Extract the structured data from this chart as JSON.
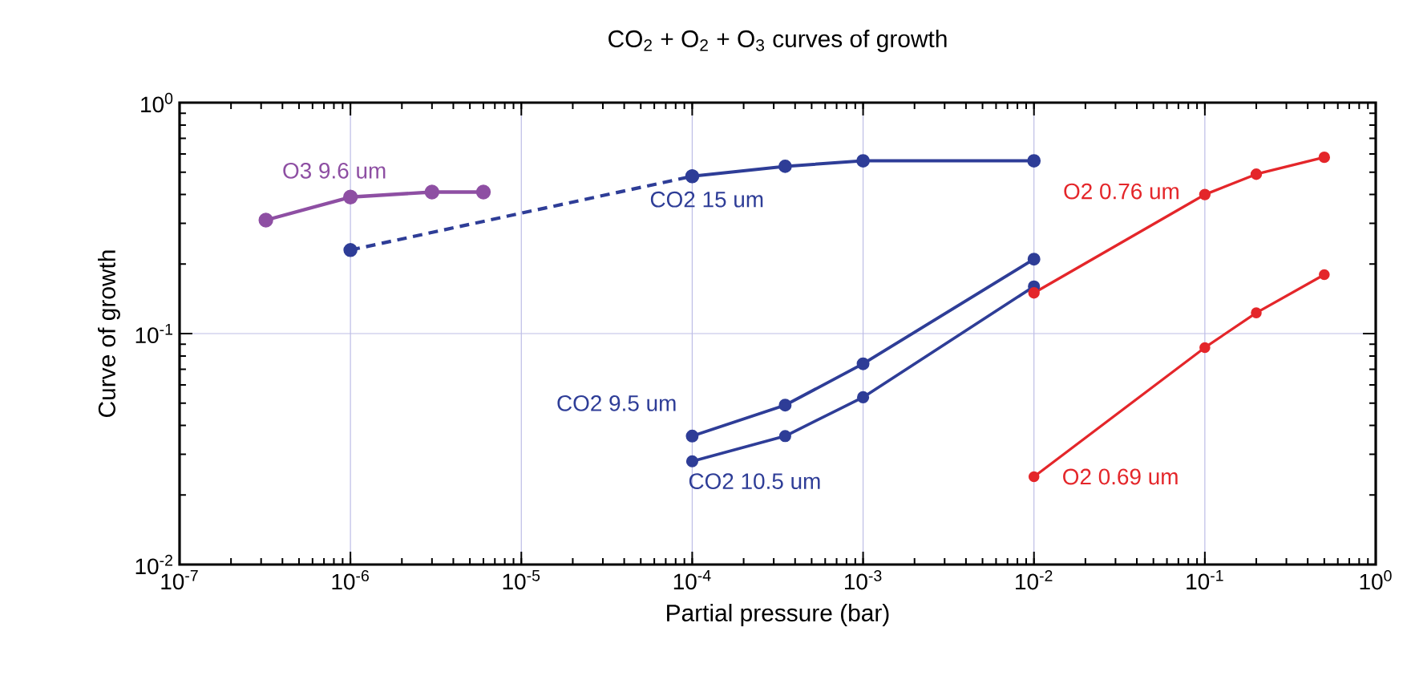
{
  "chart_data": {
    "type": "line",
    "title": "CO$_{2}$ +  O$_{2}$ + O$_{3}$ curves of growth",
    "xlabel": "Partial pressure  (bar)",
    "ylabel": "Curve of growth",
    "log": "xy",
    "grid": true,
    "legend": false,
    "marker": "circle",
    "line_style": "solid",
    "xlim": [
      1e-07,
      1
    ],
    "ylim": [
      0.01,
      1
    ],
    "xticks": [
      {
        "value": 1e-07,
        "label": "10$^{-7}$"
      },
      {
        "value": 1e-06,
        "label": "10$^{-6}$"
      },
      {
        "value": 1e-05,
        "label": "10$^{-5}$"
      },
      {
        "value": 0.0001,
        "label": "10$^{-4}$"
      },
      {
        "value": 0.001,
        "label": "10$^{-3}$"
      },
      {
        "value": 0.01,
        "label": "10$^{-2}$"
      },
      {
        "value": 0.1,
        "label": "10$^{-1}$"
      },
      {
        "value": 1,
        "label": "10$^{0}$"
      }
    ],
    "yticks": [
      {
        "value": 0.01,
        "label": "10$^{-2}$"
      },
      {
        "value": 0.1,
        "label": "10$^{-1}$"
      },
      {
        "value": 1,
        "label": "10$^{0}$"
      }
    ],
    "series": [
      {
        "name": "O3  9.6 um",
        "color": "#8e4fa3",
        "x": [
          3.2e-07,
          1e-06,
          3e-06,
          6e-06
        ],
        "values": [
          0.31,
          0.39,
          0.41,
          0.41
        ]
      },
      {
        "color": "#2e3d97",
        "line_style": "dashed",
        "x": [
          1e-06,
          0.0001
        ],
        "values": [
          0.23,
          0.48
        ]
      },
      {
        "name": "CO2  15 um",
        "color": "#2e3d97",
        "x": [
          0.0001,
          0.00035,
          0.001,
          0.01
        ],
        "values": [
          0.48,
          0.53,
          0.56,
          0.56
        ]
      },
      {
        "name": "CO2   9.5 um",
        "color": "#2e3d97",
        "x": [
          0.0001,
          0.00035,
          0.001,
          0.01
        ],
        "values": [
          0.036,
          0.049,
          0.074,
          0.21
        ]
      },
      {
        "name": "CO2   10.5 um",
        "color": "#2e3d97",
        "x": [
          0.0001,
          0.00035,
          0.001,
          0.01
        ],
        "values": [
          0.028,
          0.036,
          0.053,
          0.16
        ]
      },
      {
        "name": "O2   0.76 um",
        "color": "#e4262a",
        "x": [
          0.01,
          0.1,
          0.2,
          0.5
        ],
        "values": [
          0.15,
          0.4,
          0.49,
          0.58
        ]
      },
      {
        "name": "O2   0.69 um",
        "color": "#e4262a",
        "x": [
          0.01,
          0.1,
          0.2,
          0.5
        ],
        "values": [
          0.024,
          0.087,
          0.123,
          0.18
        ]
      }
    ]
  }
}
